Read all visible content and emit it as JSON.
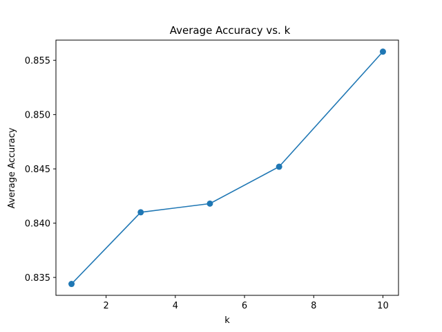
{
  "chart_data": {
    "type": "line",
    "title": "Average Accuracy vs. k",
    "xlabel": "k",
    "ylabel": "Average Accuracy",
    "x": [
      1,
      3,
      5,
      7,
      10
    ],
    "series": [
      {
        "name": "Average Accuracy",
        "values": [
          0.8344,
          0.841,
          0.8418,
          0.8452,
          0.8558
        ],
        "color": "#1f77b4",
        "marker": "circle"
      }
    ],
    "xlim": [
      0.55,
      10.45
    ],
    "ylim": [
      0.83335,
      0.85686
    ],
    "xticks": [
      2,
      4,
      6,
      8,
      10
    ],
    "xtick_labels": [
      "2",
      "4",
      "6",
      "8",
      "10"
    ],
    "yticks": [
      0.835,
      0.84,
      0.845,
      0.85,
      0.855
    ],
    "ytick_labels": [
      "0.835",
      "0.840",
      "0.845",
      "0.850",
      "0.855"
    ],
    "grid": false,
    "legend": "none"
  }
}
